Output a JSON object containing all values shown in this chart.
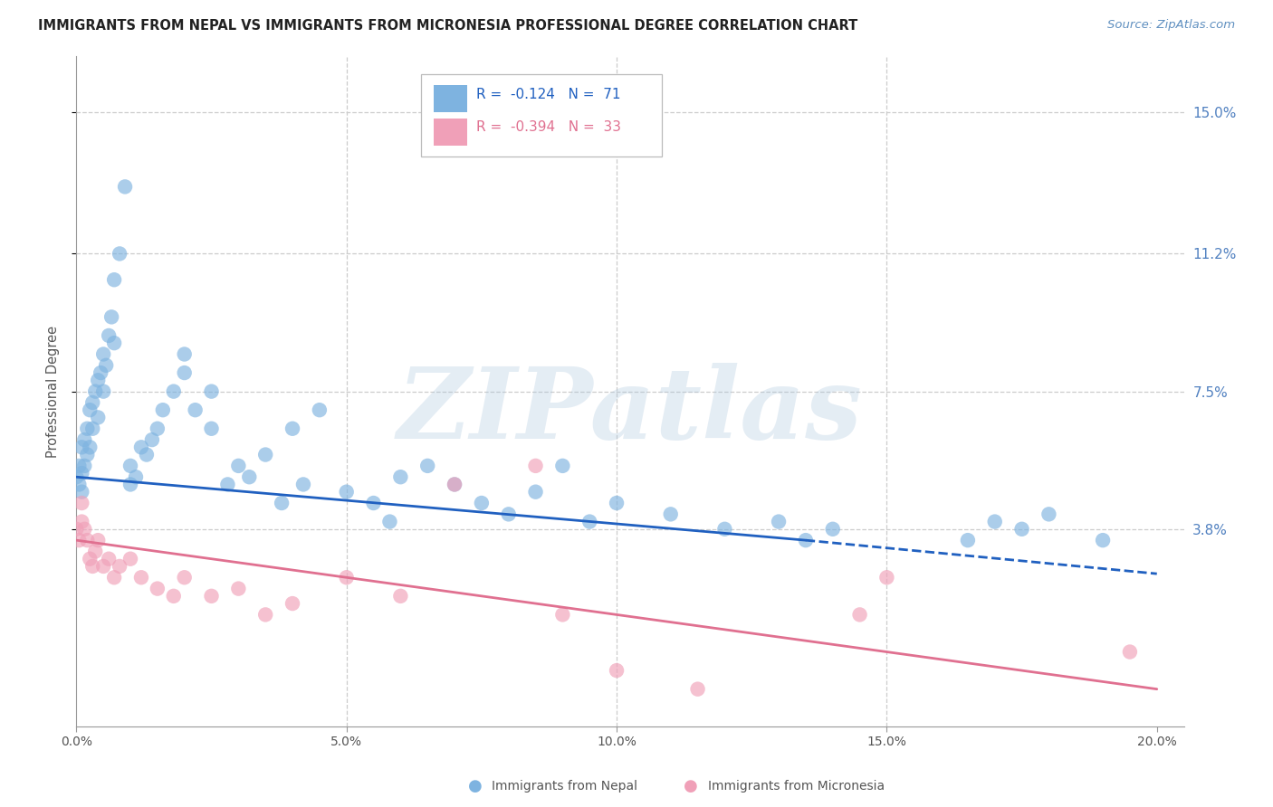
{
  "title": "IMMIGRANTS FROM NEPAL VS IMMIGRANTS FROM MICRONESIA PROFESSIONAL DEGREE CORRELATION CHART",
  "source": "Source: ZipAtlas.com",
  "ylabel": "Professional Degree",
  "x_tick_labels": [
    "0.0%",
    "5.0%",
    "10.0%",
    "15.0%",
    "20.0%"
  ],
  "x_tick_values": [
    0.0,
    5.0,
    10.0,
    15.0,
    20.0
  ],
  "y_tick_labels": [
    "15.0%",
    "11.2%",
    "7.5%",
    "3.8%"
  ],
  "y_tick_values": [
    15.0,
    11.2,
    7.5,
    3.8
  ],
  "xlim": [
    0.0,
    20.5
  ],
  "ylim": [
    -1.5,
    16.5
  ],
  "nepal_color": "#7EB3E0",
  "micronesia_color": "#F0A0B8",
  "nepal_line_color": "#2060C0",
  "micronesia_line_color": "#E07090",
  "R_nepal": -0.124,
  "N_nepal": 71,
  "R_micronesia": -0.394,
  "N_micronesia": 33,
  "nepal_x": [
    0.0,
    0.05,
    0.05,
    0.1,
    0.1,
    0.1,
    0.15,
    0.15,
    0.2,
    0.2,
    0.25,
    0.25,
    0.3,
    0.3,
    0.35,
    0.4,
    0.4,
    0.45,
    0.5,
    0.5,
    0.55,
    0.6,
    0.65,
    0.7,
    0.7,
    0.8,
    0.9,
    1.0,
    1.0,
    1.1,
    1.2,
    1.3,
    1.4,
    1.5,
    1.6,
    1.8,
    2.0,
    2.0,
    2.2,
    2.5,
    2.5,
    2.8,
    3.0,
    3.2,
    3.5,
    3.8,
    4.0,
    4.2,
    4.5,
    5.0,
    5.5,
    5.8,
    6.0,
    6.5,
    7.0,
    7.5,
    8.0,
    8.5,
    9.0,
    9.5,
    10.0,
    11.0,
    12.0,
    13.0,
    13.5,
    14.0,
    16.5,
    17.0,
    17.5,
    18.0,
    19.0
  ],
  "nepal_y": [
    5.2,
    5.0,
    5.5,
    4.8,
    5.3,
    6.0,
    5.5,
    6.2,
    5.8,
    6.5,
    6.0,
    7.0,
    6.5,
    7.2,
    7.5,
    6.8,
    7.8,
    8.0,
    7.5,
    8.5,
    8.2,
    9.0,
    9.5,
    8.8,
    10.5,
    11.2,
    13.0,
    5.0,
    5.5,
    5.2,
    6.0,
    5.8,
    6.2,
    6.5,
    7.0,
    7.5,
    8.0,
    8.5,
    7.0,
    6.5,
    7.5,
    5.0,
    5.5,
    5.2,
    5.8,
    4.5,
    6.5,
    5.0,
    7.0,
    4.8,
    4.5,
    4.0,
    5.2,
    5.5,
    5.0,
    4.5,
    4.2,
    4.8,
    5.5,
    4.0,
    4.5,
    4.2,
    3.8,
    4.0,
    3.5,
    3.8,
    3.5,
    4.0,
    3.8,
    4.2,
    3.5
  ],
  "micronesia_x": [
    0.0,
    0.05,
    0.1,
    0.1,
    0.15,
    0.2,
    0.25,
    0.3,
    0.35,
    0.4,
    0.5,
    0.6,
    0.7,
    0.8,
    1.0,
    1.2,
    1.5,
    1.8,
    2.0,
    2.5,
    3.0,
    3.5,
    4.0,
    5.0,
    6.0,
    7.0,
    8.5,
    9.0,
    10.0,
    11.5,
    14.5,
    15.0,
    19.5
  ],
  "micronesia_y": [
    3.8,
    3.5,
    4.0,
    4.5,
    3.8,
    3.5,
    3.0,
    2.8,
    3.2,
    3.5,
    2.8,
    3.0,
    2.5,
    2.8,
    3.0,
    2.5,
    2.2,
    2.0,
    2.5,
    2.0,
    2.2,
    1.5,
    1.8,
    2.5,
    2.0,
    5.0,
    5.5,
    1.5,
    0.0,
    -0.5,
    1.5,
    2.5,
    0.5
  ],
  "nepal_line_x0": 0.0,
  "nepal_line_y0": 5.2,
  "nepal_line_x1": 13.5,
  "nepal_line_y1": 3.5,
  "nepal_dash_x0": 13.5,
  "nepal_dash_y0": 3.5,
  "nepal_dash_x1": 20.0,
  "nepal_dash_y1": 2.6,
  "mic_line_x0": 0.0,
  "mic_line_y0": 3.5,
  "mic_line_x1": 20.0,
  "mic_line_y1": -0.5,
  "watermark_text": "ZIPatlas",
  "background_color": "#ffffff",
  "grid_color": "#cccccc",
  "title_color": "#222222",
  "source_color": "#6090c0",
  "axis_label_color": "#555555",
  "right_tick_color": "#5080c0"
}
